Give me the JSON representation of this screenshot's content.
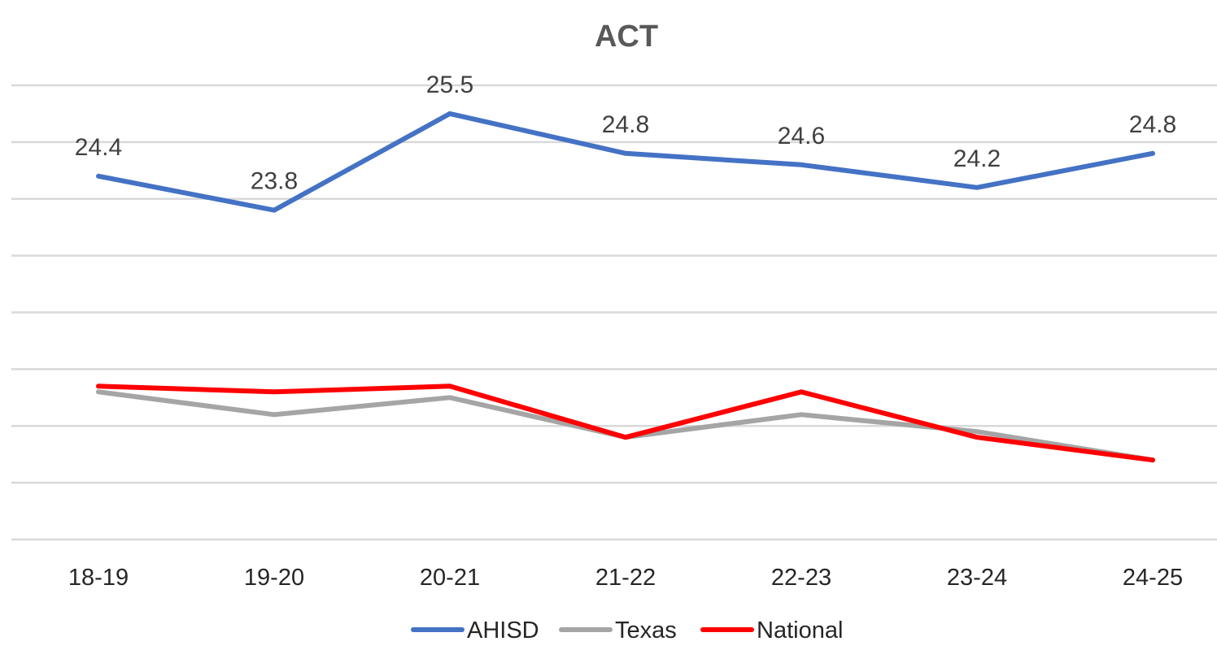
{
  "chart_data": {
    "type": "line",
    "title": "ACT",
    "xlabel": "",
    "ylabel": "",
    "categories": [
      "18-19",
      "19-20",
      "20-21",
      "21-22",
      "22-23",
      "23-24",
      "24-25"
    ],
    "series": [
      {
        "name": "AHISD",
        "color": "#4472c4",
        "values": [
          24.4,
          23.8,
          25.5,
          24.8,
          24.6,
          24.2,
          24.8
        ],
        "labels": [
          "24.4",
          "23.8",
          "25.5",
          "24.8",
          "24.6",
          "24.2",
          "24.8"
        ]
      },
      {
        "name": "Texas",
        "color": "#a5a5a5",
        "values": [
          20.6,
          20.2,
          20.5,
          19.8,
          20.2,
          19.9,
          19.4
        ]
      },
      {
        "name": "National",
        "color": "#ff0000",
        "values": [
          20.7,
          20.6,
          20.7,
          19.8,
          20.6,
          19.8,
          19.4
        ]
      }
    ],
    "ylim": [
      18,
      26
    ],
    "gridlines": 9,
    "legend_position": "bottom",
    "grid": true
  }
}
